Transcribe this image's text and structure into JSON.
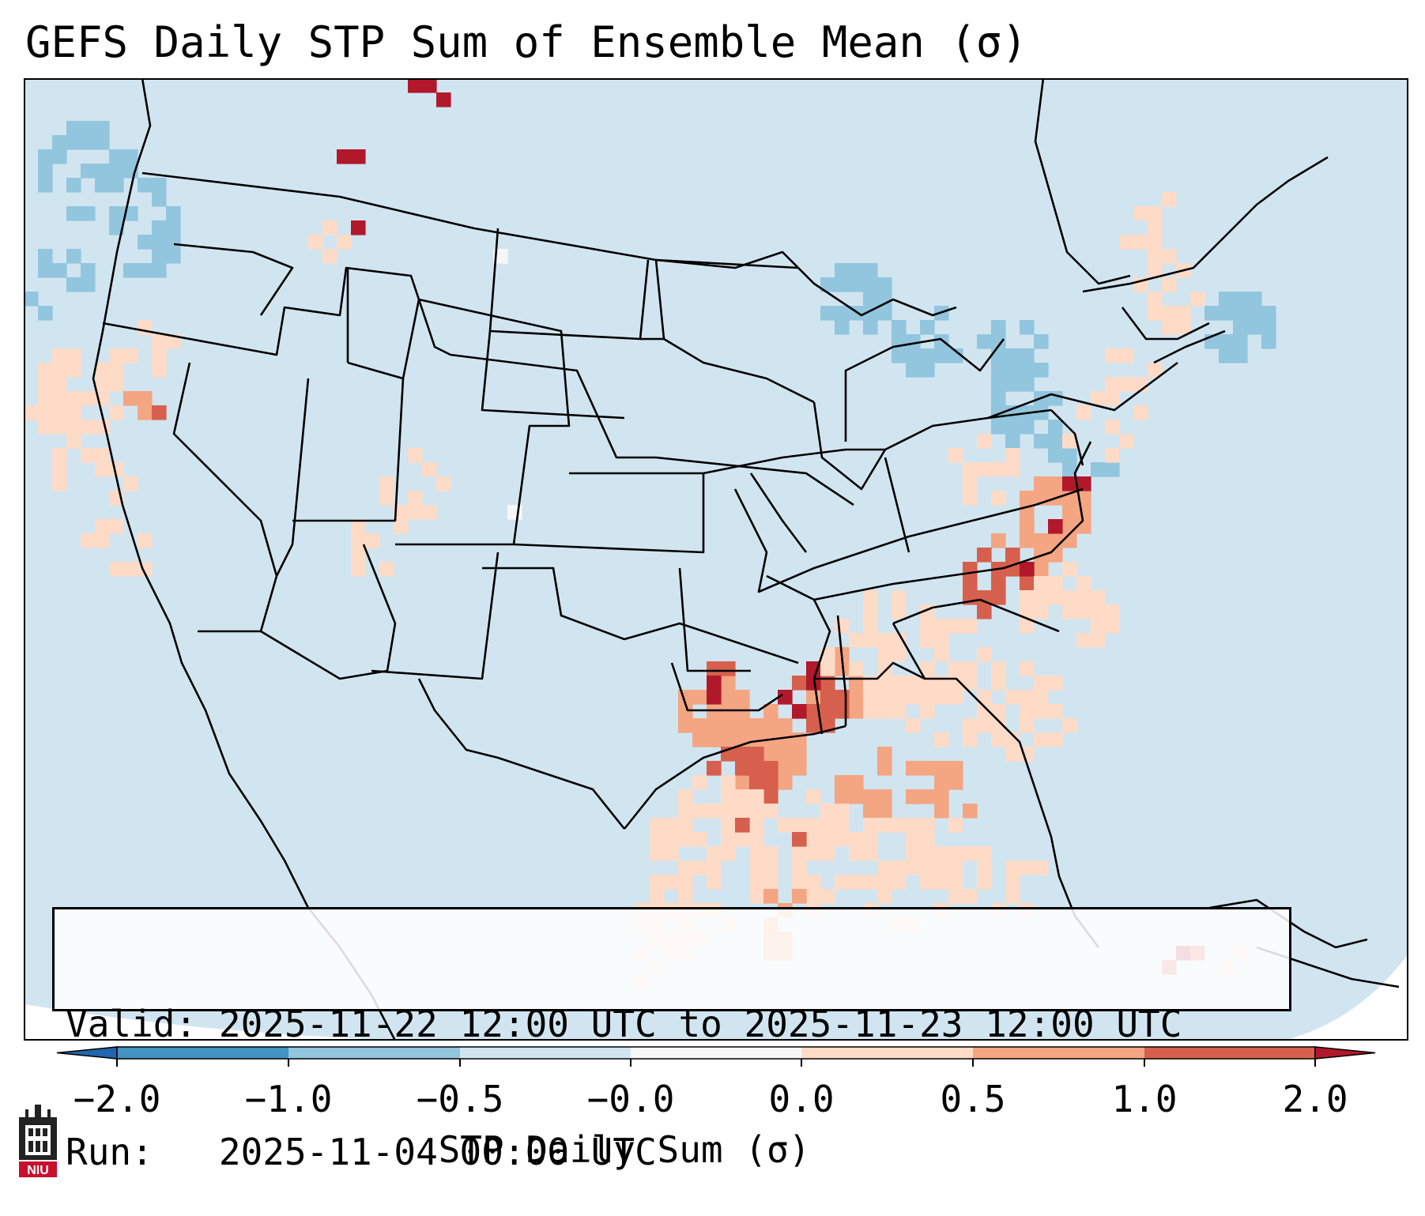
{
  "chart_data": {
    "type": "heatmap",
    "title": "GEFS Daily STP Sum of Ensemble Mean (σ)",
    "map_region": "Contiguous United States",
    "valid_label": "Valid:",
    "valid_range": "2025-11-22 12:00 UTC to 2025-11-23 12:00 UTC",
    "run_label": "Run:",
    "run_time": "2025-11-04 00:00 UTC",
    "colorbar": {
      "label": "STP Daily Sum (σ)",
      "extend": "both",
      "tick_labels": [
        "−2.0",
        "−1.0",
        "−0.5",
        "−0.0",
        "0.0",
        "0.5",
        "1.0",
        "2.0"
      ],
      "bins": [
        {
          "range": "< −2.0",
          "color": "#2166ac"
        },
        {
          "range": "−2.0 to −1.0",
          "color": "#4393c3"
        },
        {
          "range": "−1.0 to −0.5",
          "color": "#92c5de"
        },
        {
          "range": "−0.5 to −0.0",
          "color": "#d1e5f0"
        },
        {
          "range": "−0.0 to 0.0",
          "color": "#f7f7f7"
        },
        {
          "range": "0.0 to 0.5",
          "color": "#fddbc7"
        },
        {
          "range": "0.5 to 1.0",
          "color": "#f4a582"
        },
        {
          "range": "1.0 to 2.0",
          "color": "#d6604d"
        },
        {
          "range": "> 2.0",
          "color": "#b2182b"
        }
      ]
    },
    "background_value_range": "−0.5 to −0.0",
    "highlighted_areas": [
      {
        "area": "Lower Mississippi Valley (LA, MS)",
        "value_range": "1.0 to 2.0"
      },
      {
        "area": "Central Alabama",
        "value_range": "1.0 to 2.0"
      },
      {
        "area": "Virginia / Maryland",
        "value_range": "1.0 to 2.0"
      },
      {
        "area": "Gulf Coast and Gulf of Mexico",
        "value_range": "0.0 to 1.0"
      },
      {
        "area": "Great Lakes",
        "value_range": "−1.0 to −0.5"
      },
      {
        "area": "Pacific Ocean off Washington",
        "value_range": "−1.0 to −0.5"
      }
    ]
  },
  "logo": {
    "text": "NIU",
    "color": "#c8102e"
  }
}
